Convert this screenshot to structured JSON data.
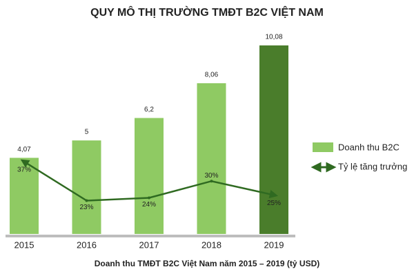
{
  "chart_data": {
    "type": "bar_line",
    "title": "QUY MÔ THỊ TRƯỜNG TMĐT B2C VIỆT NAM",
    "subtitle": "Doanh thu TMĐT B2C Việt Nam năm 2015 – 2019 (tỷ USD)",
    "categories": [
      "2015",
      "2016",
      "2017",
      "2018",
      "2019"
    ],
    "series": [
      {
        "name": "Doanh thu B2C",
        "type": "bar",
        "color": "#8fca63",
        "colors": [
          "#8fca63",
          "#8fca63",
          "#8fca63",
          "#8fca63",
          "#4a7d2b"
        ],
        "values": [
          4.07,
          5,
          6.2,
          8.06,
          10.08
        ],
        "value_labels": [
          "4,07",
          "5",
          "6,2",
          "8,06",
          "10,08"
        ]
      },
      {
        "name": "Tỷ lệ tăng trưởng",
        "type": "line",
        "axis": "y2",
        "color": "#2f6a21",
        "values": [
          37,
          23,
          24,
          30,
          25
        ],
        "value_labels": [
          "37%",
          "23%",
          "24%",
          "30%",
          "25%"
        ]
      }
    ],
    "ylim": [
      0,
      11
    ],
    "y2lim": [
      11,
      85
    ],
    "legend": "right"
  }
}
